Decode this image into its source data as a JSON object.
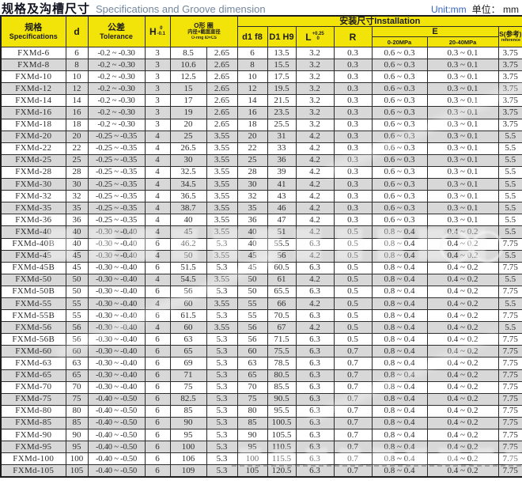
{
  "header": {
    "title_zh": "规格及沟槽尺寸",
    "title_en": "Specifications and Groove dimension",
    "unit_en": "Unit:mm",
    "unit_zh": "单位： mm"
  },
  "table": {
    "headers": {
      "spec_zh": "规格",
      "spec_en": "Specifications",
      "d": "d",
      "tolerance_zh": "公差",
      "tolerance_en": "Tolerance",
      "h": "H",
      "h_sup": "0",
      "h_sub": "-0.1",
      "oring_zh": "O形 圈",
      "oring_detail": "内径×截面直径",
      "oring_en": "O-ring ID×CS",
      "installation": "安装尺寸Installation",
      "d1": "d1 f8",
      "D1": "D1 H9",
      "l": "L",
      "l_sup": "+0.25",
      "l_sub": "0",
      "r": "R",
      "e": "E",
      "e_low": "0-20MPa",
      "e_high": "20-40MPa",
      "s_zh": "S(参考)",
      "s_en": "reference"
    },
    "col_keys": [
      "spec",
      "d",
      "tolerance",
      "h",
      "oring-id",
      "oring-cs",
      "d1-f8",
      "D1-H9",
      "L",
      "R",
      "e-0-20mpa",
      "e-20-40mpa",
      "s-ref"
    ],
    "rows": [
      [
        "FXMd-6",
        "6",
        "-0.2 ~ -0.30",
        "3",
        "8.5",
        "2.65",
        "6",
        "13.5",
        "3.2",
        "0.3",
        "0.6 ~ 0.3",
        "0.3 ~ 0.1",
        "3.75"
      ],
      [
        "FXMd-8",
        "8",
        "-0.2 ~ -0.30",
        "3",
        "10.6",
        "2.65",
        "8",
        "15.5",
        "3.2",
        "0.3",
        "0.6 ~ 0.3",
        "0.3 ~ 0.1",
        "3.75"
      ],
      [
        "FXMd-10",
        "10",
        "-0.2 ~ -0.30",
        "3",
        "12.5",
        "2.65",
        "10",
        "17.5",
        "3.2",
        "0.3",
        "0.6 ~ 0.3",
        "0.3 ~ 0.1",
        "3.75"
      ],
      [
        "FXMd-12",
        "12",
        "-0.2 ~ -0.30",
        "3",
        "15",
        "2.65",
        "12",
        "19.5",
        "3.2",
        "0.3",
        "0.6 ~ 0.3",
        "0.3 ~ 0.1",
        "3.75"
      ],
      [
        "FXMd-14",
        "14",
        "-0.2 ~ -0.30",
        "3",
        "17",
        "2.65",
        "14",
        "21.5",
        "3.2",
        "0.3",
        "0.6 ~ 0.3",
        "0.3 ~ 0.1",
        "3.75"
      ],
      [
        "FXMd-16",
        "16",
        "-0.2 ~ -0.30",
        "3",
        "19",
        "2.65",
        "16",
        "23.5",
        "3.2",
        "0.3",
        "0.6 ~ 0.3",
        "0.3 ~ 0.1",
        "3.75"
      ],
      [
        "FXMd-18",
        "18",
        "-0.2 ~ -0.30",
        "3",
        "20",
        "2.65",
        "18",
        "25.5",
        "3.2",
        "0.3",
        "0.6 ~ 0.3",
        "0.3 ~ 0.1",
        "3.75"
      ],
      [
        "FXMd-20",
        "20",
        "-0.25 ~ -0.35",
        "4",
        "25",
        "3.55",
        "20",
        "31",
        "4.2",
        "0.3",
        "0.6 ~ 0.3",
        "0.3 ~ 0.1",
        "5.5"
      ],
      [
        "FXMd-22",
        "22",
        "-0.25 ~ -0.35",
        "4",
        "26.5",
        "3.55",
        "22",
        "33",
        "4.2",
        "0.3",
        "0.6 ~ 0.3",
        "0.3 ~ 0.1",
        "5.5"
      ],
      [
        "FXMd-25",
        "25",
        "-0.25 ~ -0.35",
        "4",
        "30",
        "3.55",
        "25",
        "36",
        "4.2",
        "0.3",
        "0.6 ~ 0.3",
        "0.3 ~ 0.1",
        "5.5"
      ],
      [
        "FXMd-28",
        "28",
        "-0.25 ~ -0.35",
        "4",
        "32.5",
        "3.55",
        "28",
        "39",
        "4.2",
        "0.3",
        "0.6 ~ 0.3",
        "0.3 ~ 0.1",
        "5.5"
      ],
      [
        "FXMd-30",
        "30",
        "-0.25 ~ -0.35",
        "4",
        "34.5",
        "3.55",
        "30",
        "41",
        "4.2",
        "0.3",
        "0.6 ~ 0.3",
        "0.3 ~ 0.1",
        "5.5"
      ],
      [
        "FXMd-32",
        "32",
        "-0.25 ~ -0.35",
        "4",
        "36.5",
        "3.55",
        "32",
        "43",
        "4.2",
        "0.3",
        "0.6 ~ 0.3",
        "0.3 ~ 0.1",
        "5.5"
      ],
      [
        "FXMd-35",
        "35",
        "-0.25 ~ -0.35",
        "4",
        "38.7",
        "3.55",
        "35",
        "46",
        "4.2",
        "0.3",
        "0.6 ~ 0.3",
        "0.3 ~ 0.1",
        "5.5"
      ],
      [
        "FXMd-36",
        "36",
        "-0.25 ~ -0.35",
        "4",
        "40",
        "3.55",
        "36",
        "47",
        "4.2",
        "0.3",
        "0.6 ~ 0.3",
        "0.3 ~ 0.1",
        "5.5"
      ],
      [
        "FXMd-40",
        "40",
        "-0.30 ~ -0.40",
        "4",
        "45",
        "3.55",
        "40",
        "51",
        "4.2",
        "0.5",
        "0.8 ~ 0.4",
        "0.4 ~ 0.2",
        "5.5"
      ],
      [
        "FXMd-40B",
        "40",
        "-0.30 ~ -0.40",
        "6",
        "46.2",
        "5.3",
        "40",
        "55.5",
        "6.3",
        "0.5",
        "0.8 ~ 0.4",
        "0.4 ~ 0.2",
        "7.75"
      ],
      [
        "FXMd-45",
        "45",
        "-0.30 ~ -0.40",
        "4",
        "50",
        "3.55",
        "45",
        "56",
        "4.2",
        "0.5",
        "0.8 ~ 0.4",
        "0.4 ~ 0.2",
        "5.5"
      ],
      [
        "FXMd-45B",
        "45",
        "-0.30 ~ -0.40",
        "6",
        "51.5",
        "5.3",
        "45",
        "60.5",
        "6.3",
        "0.5",
        "0.8 ~ 0.4",
        "0.4 ~ 0.2",
        "7.75"
      ],
      [
        "FXMd-50",
        "50",
        "-0.30 ~ -0.40",
        "4",
        "54.5",
        "3.55",
        "50",
        "61",
        "4.2",
        "0.5",
        "0.8 ~ 0.4",
        "0.4 ~ 0.2",
        "5.5"
      ],
      [
        "FXMd-50B",
        "50",
        "-0.30 ~ -0.40",
        "6",
        "56",
        "5.3",
        "50",
        "65.5",
        "6.3",
        "0.5",
        "0.8 ~ 0.4",
        "0.4 ~ 0.2",
        "7.75"
      ],
      [
        "FXMd-55",
        "55",
        "-0.30 ~ -0.40",
        "4",
        "60",
        "3.55",
        "55",
        "66",
        "4.2",
        "0.5",
        "0.8 ~ 0.4",
        "0.4 ~ 0.2",
        "5.5"
      ],
      [
        "FXMd-55B",
        "55",
        "-0.30 ~ -0.40",
        "6",
        "61.5",
        "5.3",
        "55",
        "70.5",
        "6.3",
        "0.5",
        "0.8 ~ 0.4",
        "0.4 ~ 0.2",
        "7.75"
      ],
      [
        "FXMd-56",
        "56",
        "-0.30 ~ -0.40",
        "4",
        "60",
        "3.55",
        "56",
        "67",
        "4.2",
        "0.5",
        "0.8 ~ 0.4",
        "0.4 ~ 0.2",
        "5.5"
      ],
      [
        "FXMd-56B",
        "56",
        "-0.30 ~ -0.40",
        "6",
        "63",
        "5.3",
        "56",
        "71.5",
        "6.3",
        "0.5",
        "0.8 ~ 0.4",
        "0.4 ~ 0.2",
        "7.75"
      ],
      [
        "FXMd-60",
        "60",
        "-0.30 ~ -0.40",
        "6",
        "65",
        "5.3",
        "60",
        "75.5",
        "6.3",
        "0.7",
        "0.8 ~ 0.4",
        "0.4 ~ 0.2",
        "7.75"
      ],
      [
        "FXMd-63",
        "63",
        "-0.30 ~ -0.40",
        "6",
        "69",
        "5.3",
        "63",
        "78.5",
        "6.3",
        "0.7",
        "0.8 ~ 0.4",
        "0.4 ~ 0.2",
        "7.75"
      ],
      [
        "FXMd-65",
        "65",
        "-0.30 ~ -0.40",
        "6",
        "71",
        "5.3",
        "65",
        "80.5",
        "6.3",
        "0.7",
        "0.8 ~ 0.4",
        "0.4 ~ 0.2",
        "7.75"
      ],
      [
        "FXMd-70",
        "70",
        "-0.30 ~ -0.40",
        "6",
        "75",
        "5.3",
        "70",
        "85.5",
        "6.3",
        "0.7",
        "0.8 ~ 0.4",
        "0.4 ~ 0.2",
        "7.75"
      ],
      [
        "FXMd-75",
        "75",
        "-0.40 ~ -0.50",
        "6",
        "82.5",
        "5.3",
        "75",
        "90.5",
        "6.3",
        "0.7",
        "0.8 ~ 0.4",
        "0.4 ~ 0.2",
        "7.75"
      ],
      [
        "FXMd-80",
        "80",
        "-0.40 ~ -0.50",
        "6",
        "85",
        "5.3",
        "80",
        "95.5",
        "6.3",
        "0.7",
        "0.8 ~ 0.4",
        "0.4 ~ 0.2",
        "7.75"
      ],
      [
        "FXMd-85",
        "85",
        "-0.40 ~ -0.50",
        "6",
        "90",
        "5.3",
        "85",
        "100.5",
        "6.3",
        "0.7",
        "0.8 ~ 0.4",
        "0.4 ~ 0.2",
        "7.75"
      ],
      [
        "FXMd-90",
        "90",
        "-0.40 ~ -0.50",
        "6",
        "95",
        "5.3",
        "90",
        "105.5",
        "6.3",
        "0.7",
        "0.8 ~ 0.4",
        "0.4 ~ 0.2",
        "7.75"
      ],
      [
        "FXMd-95",
        "95",
        "-0.40 ~ -0.50",
        "6",
        "100",
        "5.3",
        "95",
        "110.5",
        "6.3",
        "0.7",
        "0.8 ~ 0.4",
        "0.4 ~ 0.2",
        "7.75"
      ],
      [
        "FXMd-100",
        "100",
        "-0.40 ~ -0.50",
        "6",
        "106",
        "5.3",
        "100",
        "115.5",
        "6.3",
        "0.7",
        "0.8 ~ 0.4",
        "0.4 ~ 0.2",
        "7.75"
      ],
      [
        "FXMd-105",
        "105",
        "-0.40 ~ -0.50",
        "6",
        "109",
        "5.3",
        "105",
        "120.5",
        "6.3",
        "0.7",
        "0.8 ~ 0.4",
        "0.4 ~ 0.2",
        "7.75"
      ]
    ]
  },
  "colors": {
    "header_bg": "#f2e308",
    "alt_row_bg": "#d8d8d8",
    "title_en_blue_gray": "#74889f",
    "unit_blue": "#3565c0",
    "grid_line": "#2b2b2b"
  }
}
